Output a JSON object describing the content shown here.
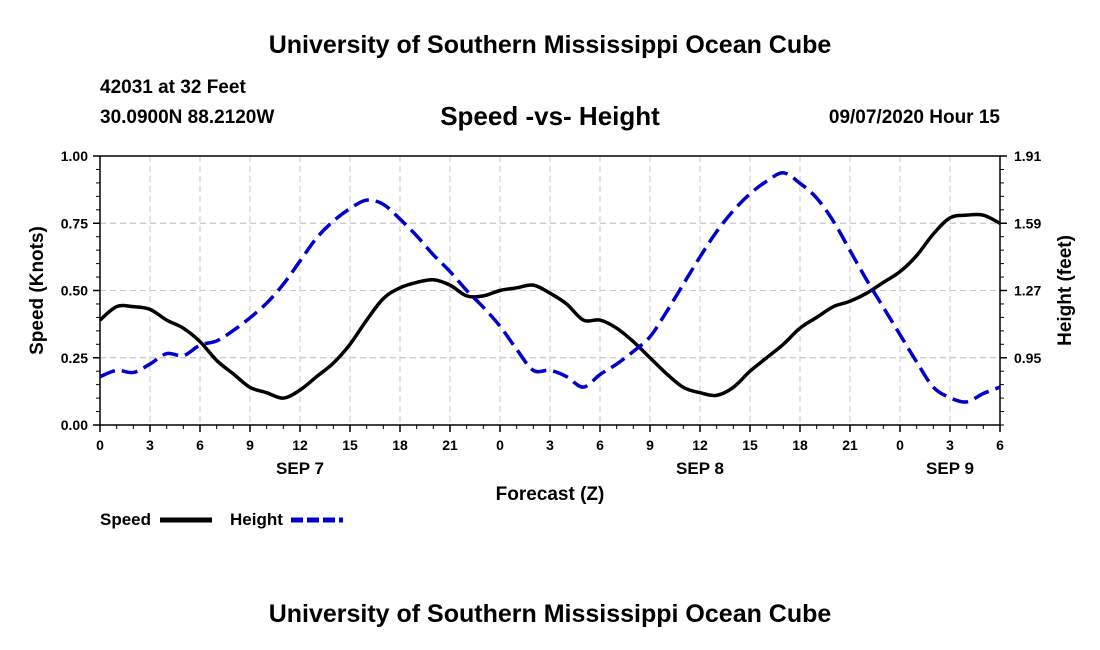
{
  "header": {
    "top_title": "University of Southern Mississippi Ocean Cube",
    "station": "42031 at 32 Feet",
    "coords": "30.0900N 88.2120W",
    "subtitle": "Speed -vs- Height",
    "datetime": "09/07/2020 Hour 15",
    "bottom_title": "University of Southern Mississippi Ocean Cube"
  },
  "chart_data": {
    "type": "line",
    "title": "Speed -vs- Height",
    "xlabel": "Forecast (Z)",
    "ylabel": "Speed (Knots)",
    "y2label": "Height (feet)",
    "xlim": [
      0,
      54
    ],
    "ylim": [
      0,
      1
    ],
    "y2lim": [
      0.63,
      1.91
    ],
    "grid": true,
    "x_tick_values": [
      0,
      3,
      6,
      9,
      12,
      15,
      18,
      21,
      24,
      27,
      30,
      33,
      36,
      39,
      42,
      45,
      48,
      51,
      54
    ],
    "x_tick_labels": [
      "0",
      "3",
      "6",
      "9",
      "12",
      "15",
      "18",
      "21",
      "0",
      "3",
      "6",
      "9",
      "12",
      "15",
      "18",
      "21",
      "0",
      "3",
      "6"
    ],
    "date_labels": [
      {
        "x": 12,
        "label": "SEP 7"
      },
      {
        "x": 36,
        "label": "SEP 8"
      },
      {
        "x": 51,
        "label": "SEP 9"
      }
    ],
    "y_ticks": [
      0.0,
      0.25,
      0.5,
      0.75,
      1.0
    ],
    "y_tick_labels": [
      "0.00",
      "0.25",
      "0.50",
      "0.75",
      "1.00"
    ],
    "y2_ticks": [
      0.95,
      1.27,
      1.59,
      1.91
    ],
    "y2_tick_labels": [
      "0.95",
      "1.27",
      "1.59",
      "1.91"
    ],
    "legend": [
      {
        "name": "Speed",
        "color": "#000000",
        "dash": "solid"
      },
      {
        "name": "Height",
        "color": "#0000cc",
        "dash": "dashed"
      }
    ],
    "series": [
      {
        "name": "Speed",
        "axis": "left",
        "color": "#000000",
        "x": [
          0,
          1,
          2,
          3,
          4,
          5,
          6,
          7,
          8,
          9,
          10,
          11,
          12,
          13,
          14,
          15,
          16,
          17,
          18,
          19,
          20,
          21,
          22,
          23,
          24,
          25,
          26,
          27,
          28,
          29,
          30,
          31,
          32,
          33,
          34,
          35,
          36,
          37,
          38,
          39,
          40,
          41,
          42,
          43,
          44,
          45,
          46,
          47,
          48,
          49,
          50,
          51,
          52,
          53,
          54
        ],
        "values": [
          0.39,
          0.44,
          0.44,
          0.43,
          0.39,
          0.36,
          0.31,
          0.24,
          0.19,
          0.14,
          0.12,
          0.1,
          0.13,
          0.18,
          0.23,
          0.3,
          0.39,
          0.47,
          0.51,
          0.53,
          0.54,
          0.52,
          0.48,
          0.48,
          0.5,
          0.51,
          0.52,
          0.49,
          0.45,
          0.39,
          0.39,
          0.36,
          0.31,
          0.25,
          0.19,
          0.14,
          0.12,
          0.11,
          0.14,
          0.2,
          0.25,
          0.3,
          0.36,
          0.4,
          0.44,
          0.46,
          0.49,
          0.53,
          0.57,
          0.63,
          0.71,
          0.77,
          0.78,
          0.78,
          0.75
        ]
      },
      {
        "name": "Height",
        "axis": "right",
        "color": "#0000cc",
        "x": [
          0,
          1,
          2,
          3,
          4,
          5,
          6,
          7,
          8,
          9,
          10,
          11,
          12,
          13,
          14,
          15,
          16,
          17,
          18,
          19,
          20,
          21,
          22,
          23,
          24,
          25,
          26,
          27,
          28,
          29,
          30,
          31,
          32,
          33,
          34,
          35,
          36,
          37,
          38,
          39,
          40,
          41,
          42,
          43,
          44,
          45,
          46,
          47,
          48,
          49,
          50,
          51,
          52,
          53,
          54
        ],
        "values": [
          0.86,
          0.89,
          0.88,
          0.92,
          0.97,
          0.96,
          1.01,
          1.03,
          1.08,
          1.14,
          1.21,
          1.3,
          1.41,
          1.52,
          1.6,
          1.66,
          1.7,
          1.68,
          1.61,
          1.53,
          1.44,
          1.36,
          1.27,
          1.19,
          1.1,
          0.99,
          0.89,
          0.89,
          0.86,
          0.81,
          0.87,
          0.92,
          0.98,
          1.05,
          1.17,
          1.3,
          1.43,
          1.55,
          1.65,
          1.73,
          1.79,
          1.83,
          1.78,
          1.71,
          1.6,
          1.46,
          1.32,
          1.19,
          1.06,
          0.93,
          0.81,
          0.76,
          0.74,
          0.78,
          0.81
        ]
      }
    ]
  }
}
